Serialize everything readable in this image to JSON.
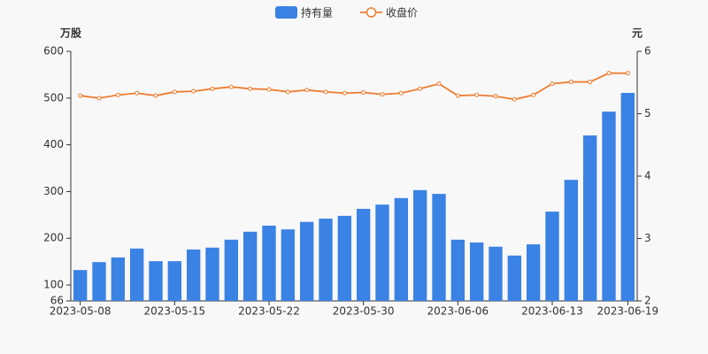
{
  "chart_data": {
    "type": "bar_line",
    "categories": [
      "2023-05-08",
      null,
      null,
      null,
      null,
      "2023-05-15",
      null,
      null,
      null,
      null,
      "2023-05-22",
      null,
      null,
      null,
      null,
      "2023-05-30",
      null,
      null,
      null,
      null,
      "2023-06-06",
      null,
      null,
      null,
      null,
      "2023-06-13",
      null,
      null,
      null,
      "2023-06-19"
    ],
    "series": [
      {
        "name": "持有量",
        "color": "#3a82e4",
        "type": "bar",
        "values": [
          132,
          149,
          159,
          178,
          151,
          151,
          176,
          180,
          197,
          214,
          227,
          219,
          235,
          242,
          248,
          263,
          272,
          286,
          303,
          295,
          197,
          191,
          182,
          163,
          187,
          257,
          325,
          420,
          471,
          511
        ]
      },
      {
        "name": "收盘价",
        "color": "#ed7d31",
        "type": "line",
        "axis": "y2",
        "values": [
          5.29,
          5.25,
          5.3,
          5.33,
          5.29,
          5.35,
          5.36,
          5.4,
          5.43,
          5.4,
          5.39,
          5.35,
          5.38,
          5.35,
          5.33,
          5.34,
          5.31,
          5.33,
          5.4,
          5.48,
          5.29,
          5.3,
          5.28,
          5.23,
          5.3,
          5.48,
          5.51,
          5.51,
          5.65,
          5.65
        ]
      }
    ],
    "ylabel": "万股",
    "y2label": "元",
    "ylim": [
      66,
      600
    ],
    "yticks": [
      66,
      100,
      200,
      300,
      400,
      500,
      600
    ],
    "y2lim": [
      2,
      6
    ],
    "y2ticks": [
      2,
      3,
      4,
      5,
      6
    ]
  }
}
